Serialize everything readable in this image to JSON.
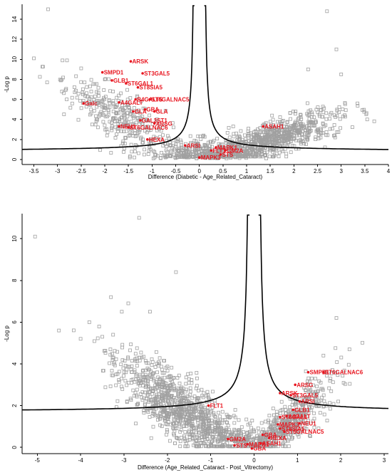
{
  "chart_data": [
    {
      "type": "scatter",
      "subtype": "volcano",
      "title": "",
      "xlabel": "Difference (Diabetic - Age_Related_Cataract)",
      "ylabel": "-Log p",
      "xlim": [
        -3.75,
        4.0
      ],
      "ylim": [
        -0.5,
        15.5
      ],
      "xticks": [
        -3.5,
        -3,
        -2.5,
        -2,
        -1.5,
        -1,
        -0.5,
        0,
        0.5,
        1,
        1.5,
        2,
        2.5,
        3,
        3.5,
        4
      ],
      "yticks": [
        0,
        2,
        4,
        6,
        8,
        10,
        12,
        14
      ],
      "grid": false,
      "curve": {
        "s0": 0.1,
        "c": 0.95,
        "style": "hyperbolic significance threshold"
      },
      "background_points": {
        "marker": "open square",
        "color": "#a0a0a0",
        "approx_count": 1400,
        "explicit": [
          [
            -3.2,
            15.0
          ],
          [
            -3.5,
            10.1
          ],
          [
            -2.8,
            9.9
          ],
          [
            -2.5,
            9.1
          ],
          [
            -2.0,
            8.0
          ],
          [
            2.7,
            14.8
          ],
          [
            2.9,
            11.0
          ],
          [
            3.55,
            4.0
          ],
          [
            3.0,
            8.5
          ],
          [
            2.3,
            9.0
          ]
        ]
      },
      "highlighted": [
        {
          "label": "ARSK",
          "x": -1.45,
          "y": 9.8
        },
        {
          "label": "SMPD1",
          "x": -2.05,
          "y": 8.7
        },
        {
          "label": "ST3GAL5",
          "x": -1.2,
          "y": 8.6
        },
        {
          "label": "GLB1",
          "x": -1.85,
          "y": 7.9
        },
        {
          "label": "ST6GAL1",
          "x": -1.55,
          "y": 7.6
        },
        {
          "label": "ST8SIA5",
          "x": -1.3,
          "y": 7.2
        },
        {
          "label": "B4GALT5",
          "x": -1.35,
          "y": 6.0
        },
        {
          "label": "ST6GALNAC5",
          "x": -1.05,
          "y": 6.0
        },
        {
          "label": "A4GALT",
          "x": -1.7,
          "y": 5.7
        },
        {
          "label": "Galc",
          "x": -2.45,
          "y": 5.6
        },
        {
          "label": "GBA",
          "x": -1.15,
          "y": 5.0
        },
        {
          "label": "GLA",
          "x": -1.4,
          "y": 4.8
        },
        {
          "label": "GLA",
          "x": -0.95,
          "y": 4.8
        },
        {
          "label": "GAL3ST1",
          "x": -1.25,
          "y": 3.9
        },
        {
          "label": "ARSG",
          "x": -0.95,
          "y": 3.6
        },
        {
          "label": "NEU1",
          "x": -1.7,
          "y": 3.3
        },
        {
          "label": "ST6GALNAC6",
          "x": -1.5,
          "y": 3.2
        },
        {
          "label": "HEXA",
          "x": -1.1,
          "y": 2.0
        },
        {
          "label": "ARSI",
          "x": -0.3,
          "y": 1.4
        },
        {
          "label": "MAPK1",
          "x": 0.35,
          "y": 1.2
        },
        {
          "label": "FLT1",
          "x": 0.25,
          "y": 0.9
        },
        {
          "label": "GM2A",
          "x": 0.55,
          "y": 0.9
        },
        {
          "label": "STS",
          "x": 0.45,
          "y": 0.5
        },
        {
          "label": "MAPK3",
          "x": 0.0,
          "y": 0.2
        },
        {
          "label": "ASAH1",
          "x": 1.35,
          "y": 3.3
        }
      ]
    },
    {
      "type": "scatter",
      "subtype": "volcano",
      "title": "",
      "xlabel": "Difference (Age_Related_Cataract - Post_Vitrectomy)",
      "ylabel": "-Log p",
      "xlim": [
        -5.35,
        3.1
      ],
      "ylim": [
        -0.3,
        11.2
      ],
      "xticks": [
        -5,
        -4,
        -3,
        -2,
        -1,
        0,
        1,
        2,
        3
      ],
      "yticks": [
        0,
        2,
        4,
        6,
        8,
        10
      ],
      "grid": false,
      "curve": {
        "s0": 0.1,
        "c": 1.7,
        "style": "hyperbolic significance threshold"
      },
      "background_points": {
        "marker": "open square",
        "color": "#a0a0a0",
        "approx_count": 1600,
        "explicit": [
          [
            -5.05,
            10.1
          ],
          [
            -2.65,
            11.0
          ],
          [
            -3.3,
            7.2
          ],
          [
            -3.05,
            6.5
          ],
          [
            -2.9,
            6.9
          ],
          [
            -3.25,
            5.4
          ],
          [
            -4.0,
            5.2
          ],
          [
            -3.5,
            5.3
          ],
          [
            -1.8,
            8.4
          ],
          [
            -4.5,
            5.6
          ],
          [
            -2.4,
            6.5
          ],
          [
            -3.8,
            6.0
          ],
          [
            1.9,
            6.2
          ],
          [
            2.2,
            4.7
          ],
          [
            1.6,
            4.4
          ]
        ]
      },
      "highlighted": [
        {
          "label": "SMPD1",
          "x": 1.25,
          "y": 3.6
        },
        {
          "label": "ST6GALNAC6",
          "x": 1.6,
          "y": 3.6
        },
        {
          "label": "ARSG",
          "x": 0.95,
          "y": 3.0
        },
        {
          "label": "ARSK",
          "x": 0.6,
          "y": 2.6
        },
        {
          "label": "ST3GAL5",
          "x": 0.85,
          "y": 2.5
        },
        {
          "label": "ARSI",
          "x": 1.05,
          "y": 2.2
        },
        {
          "label": "FLT1",
          "x": -1.05,
          "y": 2.0
        },
        {
          "label": "GLB1",
          "x": 0.9,
          "y": 1.8
        },
        {
          "label": "A4GALT",
          "x": 0.75,
          "y": 1.5
        },
        {
          "label": "ST6GAL1",
          "x": 0.6,
          "y": 1.45
        },
        {
          "label": "MAPK3",
          "x": 0.55,
          "y": 1.1
        },
        {
          "label": "NEU1",
          "x": 1.05,
          "y": 1.15
        },
        {
          "label": "ST8SIA5",
          "x": 0.6,
          "y": 0.9
        },
        {
          "label": "ST6GALNAC5",
          "x": 0.7,
          "y": 0.75
        },
        {
          "label": "HEXA",
          "x": 0.35,
          "y": 0.45
        },
        {
          "label": "GBA",
          "x": 0.2,
          "y": 0.6
        },
        {
          "label": "GM2A",
          "x": -0.6,
          "y": 0.4
        },
        {
          "label": "STS",
          "x": -0.45,
          "y": 0.1
        },
        {
          "label": "MAPK1",
          "x": -0.15,
          "y": 0.15
        },
        {
          "label": "ASAH1",
          "x": 0.15,
          "y": 0.2
        },
        {
          "label": "GBA",
          "x": -0.05,
          "y": -0.05
        }
      ]
    }
  ]
}
